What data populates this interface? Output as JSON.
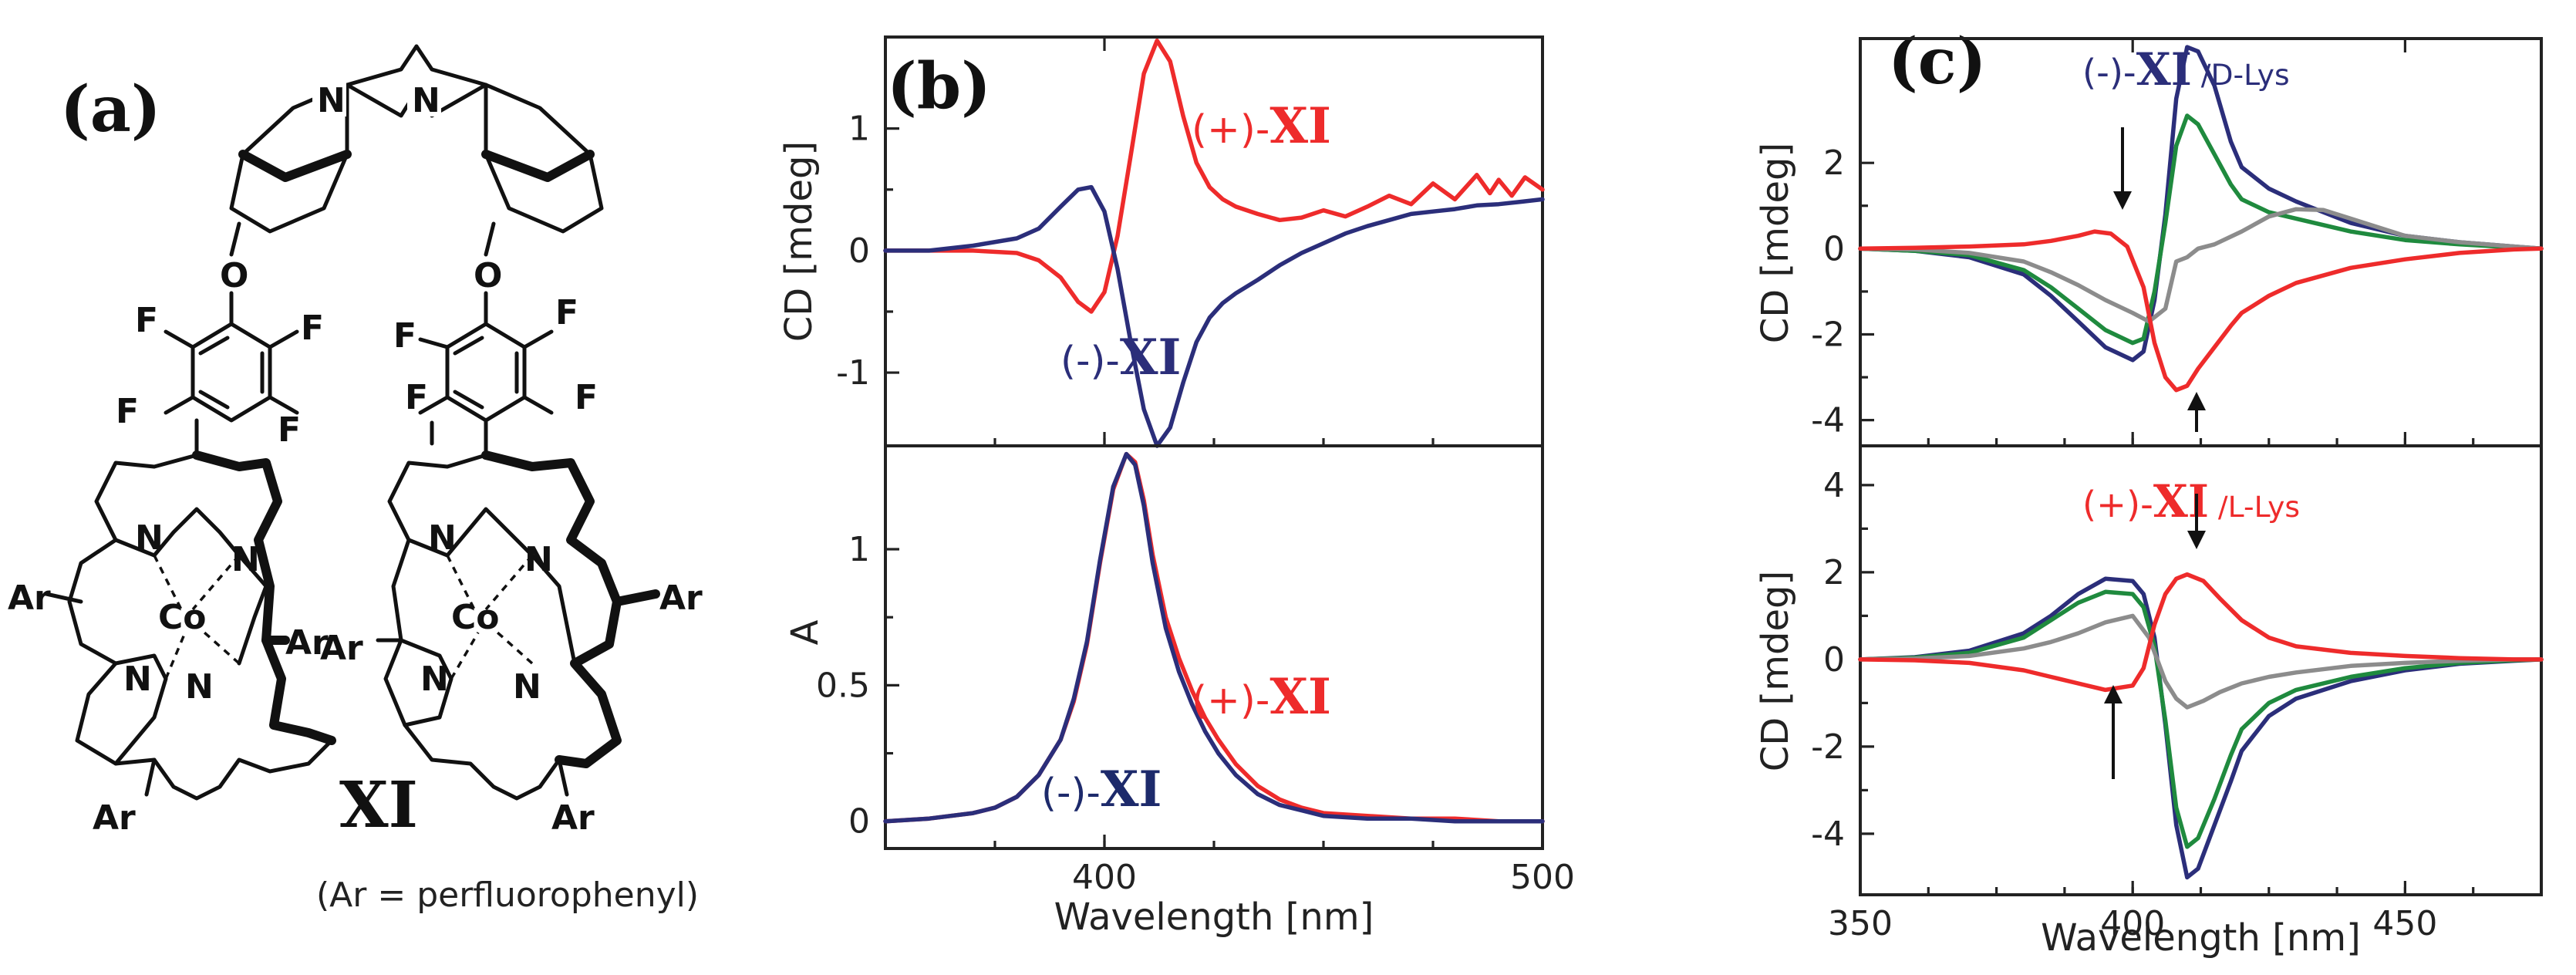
{
  "panel_a": {
    "label": "(a)",
    "compound": "XI",
    "footnote": "(Ar = perfluorophenyl)",
    "atoms": {
      "N": "N",
      "O": "O",
      "F": "F",
      "Ar": "Ar",
      "Co": "Co"
    }
  },
  "chart_data": [
    {
      "id": "b-top",
      "panel": "(b)",
      "type": "line",
      "ylabel": "CD [mdeg]",
      "xlim": [
        350,
        500
      ],
      "ylim": [
        -1.6,
        1.75
      ],
      "xticks": [
        400,
        500
      ],
      "yticks": [
        -1,
        0,
        1
      ],
      "ytick_labels": [
        "-1",
        "0",
        "1"
      ],
      "series": [
        {
          "name": "(+)-XI",
          "color": "#ee2b2b",
          "x": [
            350,
            360,
            370,
            380,
            385,
            390,
            394,
            397,
            400,
            403,
            406,
            409,
            412,
            415,
            418,
            421,
            424,
            427,
            430,
            435,
            440,
            445,
            450,
            455,
            460,
            465,
            470,
            475,
            480,
            485,
            488,
            490,
            493,
            496,
            500
          ],
          "y": [
            0,
            0,
            0,
            -0.02,
            -0.08,
            -0.22,
            -0.42,
            -0.5,
            -0.34,
            0.12,
            0.78,
            1.45,
            1.72,
            1.55,
            1.1,
            0.72,
            0.52,
            0.42,
            0.36,
            0.3,
            0.25,
            0.27,
            0.33,
            0.28,
            0.36,
            0.45,
            0.38,
            0.55,
            0.42,
            0.62,
            0.47,
            0.58,
            0.45,
            0.6,
            0.5
          ]
        },
        {
          "name": "(-)-XI",
          "color": "#2b2e7a",
          "x": [
            350,
            360,
            370,
            380,
            385,
            390,
            394,
            397,
            400,
            403,
            406,
            409,
            412,
            415,
            418,
            421,
            424,
            427,
            430,
            435,
            440,
            445,
            450,
            455,
            460,
            465,
            470,
            475,
            480,
            485,
            490,
            495,
            500
          ],
          "y": [
            0,
            0,
            0.04,
            0.1,
            0.18,
            0.36,
            0.5,
            0.52,
            0.32,
            -0.15,
            -0.75,
            -1.3,
            -1.6,
            -1.45,
            -1.08,
            -0.75,
            -0.55,
            -0.43,
            -0.35,
            -0.24,
            -0.12,
            -0.02,
            0.06,
            0.14,
            0.2,
            0.25,
            0.3,
            0.32,
            0.34,
            0.37,
            0.38,
            0.4,
            0.42
          ]
        }
      ],
      "annotations": [
        {
          "prefix": "(+)-",
          "bold": "XI",
          "color": "#ee2b2b"
        },
        {
          "prefix": "(-)-",
          "bold": "XI",
          "color": "#2b2e7a"
        }
      ]
    },
    {
      "id": "b-bottom",
      "type": "line",
      "ylabel": "A",
      "xlabel": "Wavelength [nm]",
      "xlim": [
        350,
        500
      ],
      "ylim": [
        -0.1,
        1.38
      ],
      "xticks": [
        400,
        500
      ],
      "yticks": [
        0,
        0.5,
        1
      ],
      "ytick_labels": [
        "0",
        "0.5",
        "1"
      ],
      "series": [
        {
          "name": "(+)-XI",
          "color": "#ee2b2b",
          "x": [
            350,
            360,
            370,
            375,
            380,
            385,
            390,
            393,
            396,
            399,
            402,
            405,
            407,
            409,
            411,
            414,
            417,
            420,
            423,
            426,
            430,
            435,
            440,
            445,
            450,
            460,
            470,
            480,
            490,
            500
          ],
          "y": [
            0,
            0.01,
            0.03,
            0.05,
            0.09,
            0.17,
            0.3,
            0.44,
            0.65,
            0.95,
            1.22,
            1.35,
            1.32,
            1.18,
            0.98,
            0.75,
            0.6,
            0.48,
            0.38,
            0.3,
            0.21,
            0.13,
            0.08,
            0.05,
            0.03,
            0.02,
            0.01,
            0.01,
            0,
            0
          ]
        },
        {
          "name": "(-)-XI",
          "color": "#2b2e7a",
          "x": [
            350,
            360,
            370,
            375,
            380,
            385,
            390,
            393,
            396,
            399,
            402,
            405,
            407,
            409,
            411,
            414,
            417,
            420,
            423,
            426,
            430,
            435,
            440,
            445,
            450,
            460,
            470,
            480,
            490,
            500
          ],
          "y": [
            0,
            0.01,
            0.03,
            0.05,
            0.09,
            0.17,
            0.3,
            0.45,
            0.66,
            0.96,
            1.23,
            1.35,
            1.31,
            1.16,
            0.95,
            0.71,
            0.55,
            0.43,
            0.33,
            0.25,
            0.17,
            0.1,
            0.06,
            0.04,
            0.02,
            0.01,
            0.01,
            0,
            0,
            0
          ]
        }
      ],
      "annotations": [
        {
          "prefix": "(+)-",
          "bold": "XI",
          "color": "#ee2b2b"
        },
        {
          "prefix": "(-)-",
          "bold": "XI",
          "color": "#1d2a6b"
        }
      ]
    },
    {
      "id": "c-top",
      "panel": "(c)",
      "type": "line",
      "ylabel": "CD [mdeg]",
      "xlim": [
        350,
        475
      ],
      "ylim": [
        -4.6,
        4.9
      ],
      "xticks": [
        350,
        400,
        450
      ],
      "yticks": [
        -4,
        -2,
        0,
        2
      ],
      "ytick_labels": [
        "-4",
        "-2",
        "0",
        "2"
      ],
      "series": [
        {
          "name": "navy",
          "color": "#2b2e7a",
          "x": [
            350,
            360,
            370,
            380,
            385,
            390,
            395,
            400,
            402,
            404,
            406,
            408,
            410,
            412,
            415,
            418,
            420,
            425,
            430,
            440,
            450,
            460,
            470,
            475
          ],
          "y": [
            0,
            -0.05,
            -0.2,
            -0.6,
            -1.1,
            -1.7,
            -2.3,
            -2.6,
            -2.4,
            -1.2,
            0.8,
            3.5,
            4.7,
            4.6,
            3.8,
            2.5,
            1.9,
            1.4,
            1.1,
            0.6,
            0.3,
            0.15,
            0.05,
            0
          ]
        },
        {
          "name": "green",
          "color": "#1f8a3e",
          "x": [
            350,
            360,
            370,
            380,
            385,
            390,
            395,
            400,
            402,
            404,
            406,
            408,
            410,
            412,
            415,
            418,
            420,
            425,
            430,
            440,
            450,
            460,
            470,
            475
          ],
          "y": [
            0,
            -0.05,
            -0.15,
            -0.5,
            -0.9,
            -1.4,
            -1.9,
            -2.2,
            -2.1,
            -1.0,
            0.6,
            2.4,
            3.1,
            2.9,
            2.2,
            1.5,
            1.15,
            0.85,
            0.7,
            0.4,
            0.2,
            0.1,
            0.03,
            0
          ]
        },
        {
          "name": "gray",
          "color": "#8c8c8c",
          "x": [
            350,
            360,
            370,
            380,
            385,
            390,
            395,
            400,
            403,
            406,
            408,
            410,
            412,
            415,
            420,
            425,
            430,
            435,
            440,
            450,
            460,
            470,
            475
          ],
          "y": [
            0,
            -0.02,
            -0.1,
            -0.3,
            -0.55,
            -0.85,
            -1.2,
            -1.5,
            -1.7,
            -1.4,
            -0.3,
            -0.2,
            0,
            0.1,
            0.4,
            0.75,
            0.92,
            0.9,
            0.7,
            0.3,
            0.15,
            0.05,
            0
          ]
        },
        {
          "name": "red",
          "color": "#ee2b2b",
          "x": [
            350,
            360,
            370,
            380,
            385,
            390,
            393,
            396,
            399,
            402,
            404,
            406,
            408,
            410,
            412,
            415,
            418,
            420,
            425,
            430,
            440,
            450,
            460,
            470,
            475
          ],
          "y": [
            0,
            0.02,
            0.05,
            0.1,
            0.18,
            0.3,
            0.4,
            0.35,
            0.05,
            -0.9,
            -2.2,
            -3.0,
            -3.3,
            -3.2,
            -2.8,
            -2.3,
            -1.8,
            -1.5,
            -1.1,
            -0.8,
            -0.45,
            -0.25,
            -0.1,
            -0.02,
            0
          ]
        }
      ],
      "annotations": [
        {
          "prefix": "(-)-",
          "bold": "XI",
          "suffix": " /D-Lys",
          "color": "#2b2e7a"
        }
      ]
    },
    {
      "id": "c-bottom",
      "type": "line",
      "ylabel": "CD [mdeg]",
      "xlabel": "Wavelength [nm]",
      "xlim": [
        350,
        475
      ],
      "ylim": [
        -5.4,
        4.9
      ],
      "xticks": [
        350,
        400,
        450
      ],
      "yticks": [
        -4,
        -2,
        0,
        2,
        4
      ],
      "ytick_labels": [
        "-4",
        "-2",
        "0",
        "2",
        "4"
      ],
      "series": [
        {
          "name": "navy",
          "color": "#2b2e7a",
          "x": [
            350,
            360,
            370,
            380,
            385,
            390,
            395,
            400,
            402,
            404,
            406,
            408,
            410,
            412,
            415,
            418,
            420,
            425,
            430,
            440,
            450,
            460,
            470,
            475
          ],
          "y": [
            0,
            0.05,
            0.2,
            0.6,
            1.0,
            1.5,
            1.85,
            1.8,
            1.5,
            0.5,
            -1.5,
            -3.8,
            -5.0,
            -4.8,
            -3.8,
            -2.8,
            -2.1,
            -1.3,
            -0.9,
            -0.5,
            -0.25,
            -0.1,
            -0.03,
            0
          ]
        },
        {
          "name": "green",
          "color": "#1f8a3e",
          "x": [
            350,
            360,
            370,
            380,
            385,
            390,
            395,
            400,
            402,
            404,
            406,
            408,
            410,
            412,
            415,
            418,
            420,
            425,
            430,
            440,
            450,
            460,
            470,
            475
          ],
          "y": [
            0,
            0.04,
            0.15,
            0.5,
            0.9,
            1.3,
            1.55,
            1.5,
            1.2,
            0.3,
            -1.4,
            -3.4,
            -4.3,
            -4.1,
            -3.2,
            -2.2,
            -1.6,
            -1.0,
            -0.7,
            -0.4,
            -0.2,
            -0.08,
            -0.02,
            0
          ]
        },
        {
          "name": "gray",
          "color": "#8c8c8c",
          "x": [
            350,
            360,
            370,
            380,
            385,
            390,
            395,
            400,
            403,
            406,
            408,
            410,
            413,
            416,
            420,
            425,
            430,
            440,
            450,
            460,
            470,
            475
          ],
          "y": [
            0,
            0.02,
            0.08,
            0.25,
            0.4,
            0.6,
            0.85,
            1.0,
            0.5,
            -0.5,
            -0.9,
            -1.1,
            -0.95,
            -0.75,
            -0.55,
            -0.4,
            -0.3,
            -0.15,
            -0.08,
            -0.03,
            0,
            0
          ]
        },
        {
          "name": "red",
          "color": "#ee2b2b",
          "x": [
            350,
            360,
            370,
            380,
            385,
            390,
            395,
            400,
            402,
            404,
            406,
            408,
            410,
            413,
            416,
            420,
            425,
            430,
            440,
            450,
            460,
            470,
            475
          ],
          "y": [
            0,
            -0.02,
            -0.08,
            -0.25,
            -0.4,
            -0.55,
            -0.7,
            -0.6,
            -0.2,
            0.8,
            1.5,
            1.85,
            1.95,
            1.8,
            1.4,
            0.9,
            0.5,
            0.3,
            0.15,
            0.08,
            0.03,
            0,
            0
          ]
        }
      ],
      "annotations": [
        {
          "prefix": "(+)-",
          "bold": "XI",
          "suffix": " /L-Lys",
          "color": "#ee2b2b"
        }
      ]
    }
  ]
}
